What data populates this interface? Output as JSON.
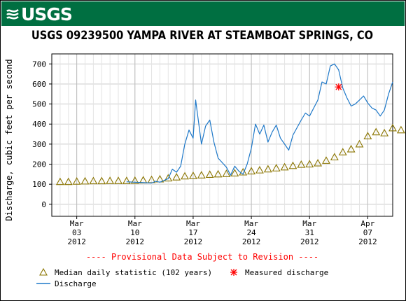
{
  "header": {
    "logo_text": "USGS",
    "brand_color": "#006f41"
  },
  "chart_data": {
    "type": "line",
    "title": "USGS 09239500 YAMPA RIVER AT STEAMBOAT SPRINGS, CO",
    "ylabel": "Discharge, cubic feet per second",
    "xlabel": "",
    "ylim": [
      -60,
      750
    ],
    "yticks": [
      0,
      100,
      200,
      300,
      400,
      500,
      600,
      700
    ],
    "xlim": [
      "2012-02-29",
      "2012-04-10"
    ],
    "xticks": [
      {
        "date": "2012-03-03",
        "month": "Mar",
        "day": "03",
        "year": "2012"
      },
      {
        "date": "2012-03-10",
        "month": "Mar",
        "day": "10",
        "year": "2012"
      },
      {
        "date": "2012-03-17",
        "month": "Mar",
        "day": "17",
        "year": "2012"
      },
      {
        "date": "2012-03-24",
        "month": "Mar",
        "day": "24",
        "year": "2012"
      },
      {
        "date": "2012-03-31",
        "month": "Mar",
        "day": "31",
        "year": "2012"
      },
      {
        "date": "2012-04-07",
        "month": "Apr",
        "day": "07",
        "year": "2012"
      }
    ],
    "grid": true,
    "annotation": "---- Provisional Data Subject to Revision ----",
    "series": [
      {
        "name": "Discharge",
        "color": "#1e78c8",
        "marker": "line",
        "points": [
          [
            "2012-03-09",
            112
          ],
          [
            "2012-03-10",
            110
          ],
          [
            "2012-03-11",
            108
          ],
          [
            "2012-03-12",
            106
          ],
          [
            "2012-03-12.5",
            115
          ],
          [
            "2012-03-13",
            110
          ],
          [
            "2012-03-14",
            128
          ],
          [
            "2012-03-14.5",
            175
          ],
          [
            "2012-03-15",
            160
          ],
          [
            "2012-03-15.5",
            190
          ],
          [
            "2012-03-16",
            300
          ],
          [
            "2012-03-16.5",
            370
          ],
          [
            "2012-03-17",
            330
          ],
          [
            "2012-03-17.3",
            520
          ],
          [
            "2012-03-18",
            300
          ],
          [
            "2012-03-18.5",
            390
          ],
          [
            "2012-03-19",
            420
          ],
          [
            "2012-03-19.5",
            310
          ],
          [
            "2012-03-20",
            230
          ],
          [
            "2012-03-21",
            185
          ],
          [
            "2012-03-21.5",
            145
          ],
          [
            "2012-03-22",
            190
          ],
          [
            "2012-03-22.5",
            165
          ],
          [
            "2012-03-23",
            150
          ],
          [
            "2012-03-23.5",
            200
          ],
          [
            "2012-03-24",
            280
          ],
          [
            "2012-03-24.5",
            400
          ],
          [
            "2012-03-25",
            350
          ],
          [
            "2012-03-25.5",
            395
          ],
          [
            "2012-03-26",
            310
          ],
          [
            "2012-03-26.5",
            360
          ],
          [
            "2012-03-27",
            395
          ],
          [
            "2012-03-27.5",
            330
          ],
          [
            "2012-03-28",
            300
          ],
          [
            "2012-03-28.5",
            270
          ],
          [
            "2012-03-29",
            345
          ],
          [
            "2012-03-30",
            420
          ],
          [
            "2012-03-30.5",
            455
          ],
          [
            "2012-03-31",
            440
          ],
          [
            "2012-04-01",
            520
          ],
          [
            "2012-04-01.5",
            610
          ],
          [
            "2012-04-02",
            600
          ],
          [
            "2012-04-02.5",
            690
          ],
          [
            "2012-04-03",
            700
          ],
          [
            "2012-04-03.5",
            670
          ],
          [
            "2012-04-04",
            580
          ],
          [
            "2012-04-04.5",
            530
          ],
          [
            "2012-04-05",
            490
          ],
          [
            "2012-04-05.5",
            500
          ],
          [
            "2012-04-06",
            520
          ],
          [
            "2012-04-06.5",
            540
          ],
          [
            "2012-04-07",
            505
          ],
          [
            "2012-04-07.5",
            480
          ],
          [
            "2012-04-08",
            470
          ],
          [
            "2012-04-08.5",
            440
          ],
          [
            "2012-04-09",
            470
          ],
          [
            "2012-04-09.5",
            550
          ],
          [
            "2012-04-10",
            610
          ]
        ]
      },
      {
        "name": "Median daily statistic (102 years)",
        "color": "#8b7500",
        "marker": "triangle",
        "points": [
          [
            "2012-03-01",
            112
          ],
          [
            "2012-03-02",
            112
          ],
          [
            "2012-03-03",
            114
          ],
          [
            "2012-03-04",
            115
          ],
          [
            "2012-03-05",
            116
          ],
          [
            "2012-03-06",
            116
          ],
          [
            "2012-03-07",
            117
          ],
          [
            "2012-03-08",
            117
          ],
          [
            "2012-03-09",
            117
          ],
          [
            "2012-03-10",
            118
          ],
          [
            "2012-03-11",
            120
          ],
          [
            "2012-03-12",
            122
          ],
          [
            "2012-03-13",
            125
          ],
          [
            "2012-03-14",
            130
          ],
          [
            "2012-03-15",
            135
          ],
          [
            "2012-03-16",
            140
          ],
          [
            "2012-03-17",
            142
          ],
          [
            "2012-03-18",
            145
          ],
          [
            "2012-03-19",
            148
          ],
          [
            "2012-03-20",
            150
          ],
          [
            "2012-03-21",
            152
          ],
          [
            "2012-03-22",
            155
          ],
          [
            "2012-03-23",
            160
          ],
          [
            "2012-03-24",
            165
          ],
          [
            "2012-03-25",
            170
          ],
          [
            "2012-03-26",
            175
          ],
          [
            "2012-03-27",
            180
          ],
          [
            "2012-03-28",
            185
          ],
          [
            "2012-03-29",
            192
          ],
          [
            "2012-03-30",
            198
          ],
          [
            "2012-03-31",
            200
          ],
          [
            "2012-04-01",
            205
          ],
          [
            "2012-04-02",
            218
          ],
          [
            "2012-04-03",
            235
          ],
          [
            "2012-04-04",
            260
          ],
          [
            "2012-04-05",
            275
          ],
          [
            "2012-04-06",
            300
          ],
          [
            "2012-04-07",
            340
          ],
          [
            "2012-04-08",
            360
          ],
          [
            "2012-04-09",
            355
          ],
          [
            "2012-04-10",
            380
          ],
          [
            "2012-04-11",
            370
          ]
        ]
      },
      {
        "name": "Measured discharge",
        "color": "#ff0000",
        "marker": "asterisk",
        "points": [
          [
            "2012-04-03.5",
            585
          ]
        ]
      }
    ],
    "legend": {
      "placement": "bottom",
      "entries": [
        {
          "label": "Median daily statistic (102 years)",
          "symbol": "triangle",
          "color": "#8b7500"
        },
        {
          "label": "Measured discharge",
          "symbol": "asterisk",
          "color": "#ff0000"
        },
        {
          "label": "Discharge",
          "symbol": "line",
          "color": "#1e78c8"
        }
      ]
    }
  }
}
